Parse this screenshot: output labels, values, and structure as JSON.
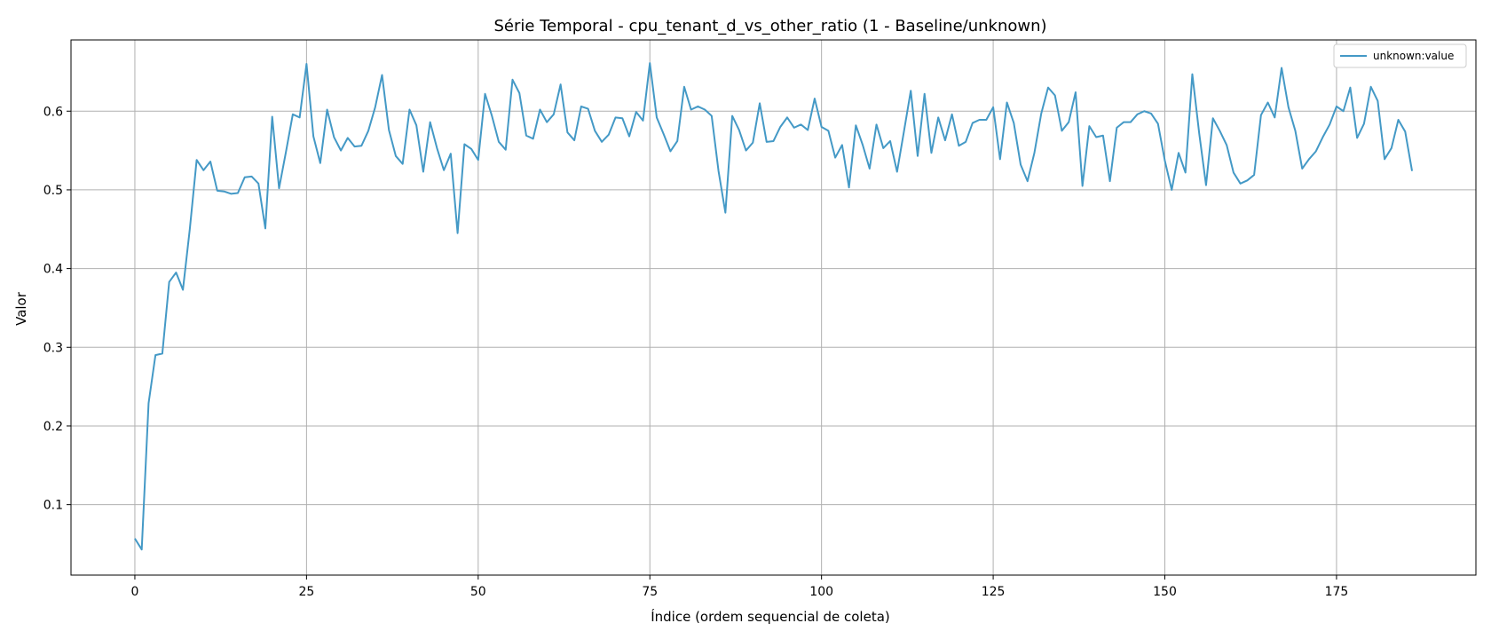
{
  "colors": {
    "series": "#4499c6",
    "grid": "#b0b0b0",
    "axis": "#000000"
  },
  "chart_data": {
    "type": "line",
    "title": "Série Temporal - cpu_tenant_d_vs_other_ratio (1 - Baseline/unknown)",
    "xlabel": "Índice (ordem sequencial de coleta)",
    "ylabel": "Valor",
    "xlim": [
      -9.3,
      195.3
    ],
    "ylim": [
      0.0105,
      0.6905
    ],
    "x_ticks": [
      0,
      25,
      50,
      75,
      100,
      125,
      150,
      175
    ],
    "y_ticks": [
      0.1,
      0.2,
      0.3,
      0.4,
      0.5,
      0.6
    ],
    "grid": true,
    "legend_position": "top-right",
    "series": [
      {
        "name": "unknown:value",
        "values": [
          0.057,
          0.043,
          0.229,
          0.29,
          0.292,
          0.383,
          0.395,
          0.373,
          0.45,
          0.538,
          0.525,
          0.536,
          0.499,
          0.498,
          0.495,
          0.496,
          0.516,
          0.517,
          0.508,
          0.451,
          0.593,
          0.502,
          0.548,
          0.596,
          0.592,
          0.66,
          0.568,
          0.534,
          0.602,
          0.567,
          0.55,
          0.566,
          0.555,
          0.556,
          0.575,
          0.605,
          0.646,
          0.576,
          0.543,
          0.533,
          0.602,
          0.582,
          0.523,
          0.586,
          0.553,
          0.525,
          0.546,
          0.445,
          0.558,
          0.552,
          0.538,
          0.622,
          0.594,
          0.561,
          0.551,
          0.64,
          0.623,
          0.569,
          0.565,
          0.602,
          0.586,
          0.596,
          0.634,
          0.573,
          0.563,
          0.606,
          0.603,
          0.575,
          0.561,
          0.57,
          0.592,
          0.591,
          0.568,
          0.599,
          0.588,
          0.661,
          0.592,
          0.571,
          0.549,
          0.562,
          0.631,
          0.602,
          0.606,
          0.602,
          0.594,
          0.524,
          0.471,
          0.594,
          0.576,
          0.55,
          0.56,
          0.61,
          0.561,
          0.562,
          0.58,
          0.592,
          0.579,
          0.583,
          0.576,
          0.616,
          0.58,
          0.575,
          0.541,
          0.557,
          0.503,
          0.582,
          0.557,
          0.527,
          0.583,
          0.553,
          0.562,
          0.523,
          0.574,
          0.626,
          0.543,
          0.622,
          0.547,
          0.592,
          0.563,
          0.596,
          0.556,
          0.561,
          0.585,
          0.589,
          0.589,
          0.605,
          0.539,
          0.611,
          0.585,
          0.532,
          0.511,
          0.547,
          0.597,
          0.63,
          0.62,
          0.575,
          0.586,
          0.624,
          0.505,
          0.581,
          0.567,
          0.569,
          0.511,
          0.579,
          0.586,
          0.586,
          0.596,
          0.6,
          0.597,
          0.584,
          0.537,
          0.5,
          0.547,
          0.522,
          0.647,
          0.572,
          0.506,
          0.591,
          0.575,
          0.557,
          0.522,
          0.508,
          0.512,
          0.519,
          0.595,
          0.611,
          0.592,
          0.655,
          0.605,
          0.575,
          0.527,
          0.539,
          0.549,
          0.567,
          0.583,
          0.606,
          0.6,
          0.63,
          0.566,
          0.584,
          0.631,
          0.613,
          0.539,
          0.553,
          0.589,
          0.574,
          0.524
        ]
      }
    ]
  }
}
